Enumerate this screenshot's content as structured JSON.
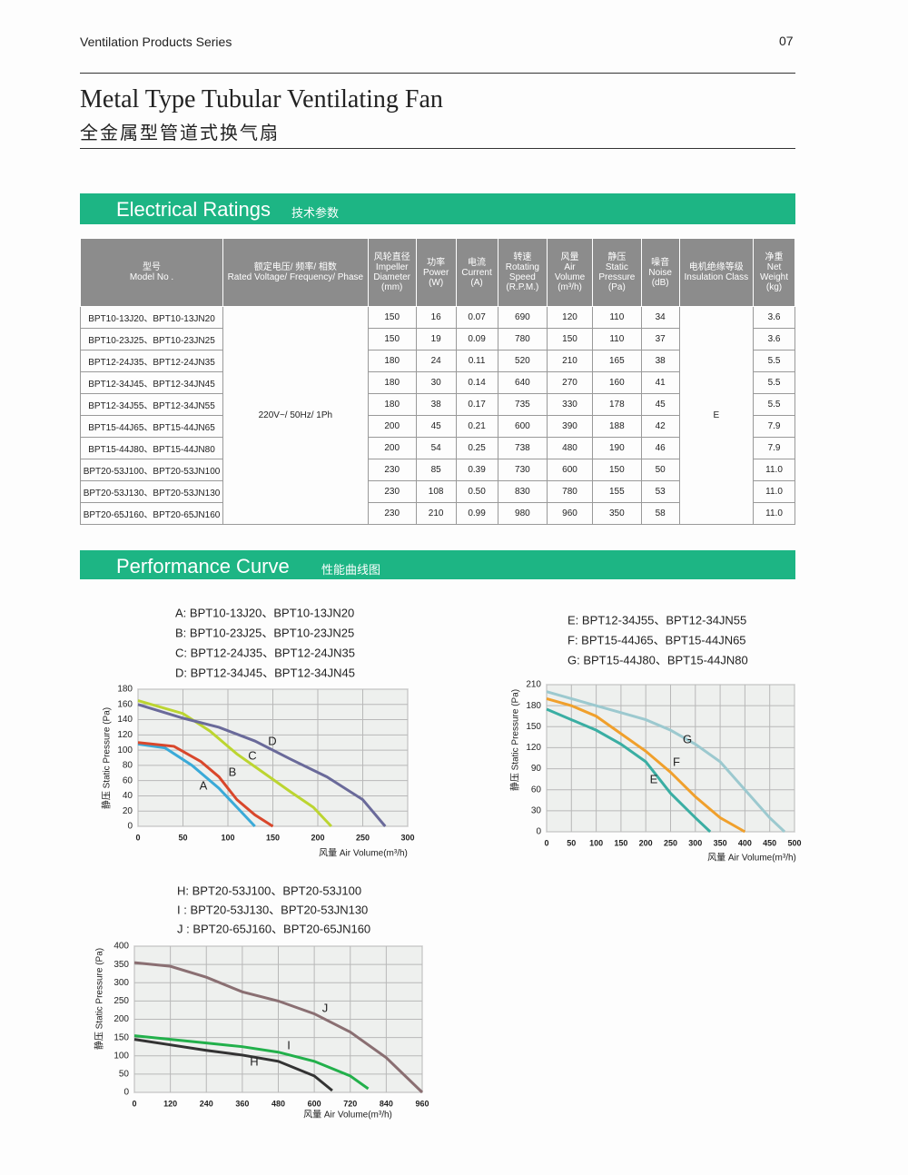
{
  "header": {
    "series": "Ventilation Products Series",
    "page": "07"
  },
  "title": {
    "en": "Metal Type Tubular Ventilating Fan",
    "zh": "全金属型管道式换气扇"
  },
  "sections": {
    "electrical": {
      "en": "Electrical Ratings",
      "zh": "技术参数"
    },
    "performance": {
      "en": "Performance Curve",
      "zh": "性能曲线图"
    }
  },
  "table": {
    "header": [
      [
        "型号",
        "Model No ."
      ],
      [
        "额定电压/ 频率/ 相数",
        "Rated Voltage/ Frequency/ Phase"
      ],
      [
        "风轮直径",
        "Impeller",
        "Diameter",
        "(mm)"
      ],
      [
        "功率",
        "Power",
        "(W)"
      ],
      [
        "电流",
        "Current",
        "(A)"
      ],
      [
        "转速",
        "Rotating",
        "Speed",
        "(R.P.M.)"
      ],
      [
        "风量",
        "Air",
        "Volume",
        "(m³/h)"
      ],
      [
        "静压",
        "Static",
        "Pressure",
        "(Pa)"
      ],
      [
        "噪音",
        "Noise",
        "(dB)"
      ],
      [
        "电机绝缘等级",
        "Insulation Class"
      ],
      [
        "净重",
        "Net",
        "Weight",
        "(kg)"
      ]
    ],
    "rated_voltage": "220V~/ 50Hz/ 1Ph",
    "insulation_class": "E",
    "rows": [
      [
        "BPT10-13J20、BPT10-13JN20",
        "150",
        "16",
        "0.07",
        "690",
        "120",
        "110",
        "34",
        "3.6"
      ],
      [
        "BPT10-23J25、BPT10-23JN25",
        "150",
        "19",
        "0.09",
        "780",
        "150",
        "110",
        "37",
        "3.6"
      ],
      [
        "BPT12-24J35、BPT12-24JN35",
        "180",
        "24",
        "0.11",
        "520",
        "210",
        "165",
        "38",
        "5.5"
      ],
      [
        "BPT12-34J45、BPT12-34JN45",
        "180",
        "30",
        "0.14",
        "640",
        "270",
        "160",
        "41",
        "5.5"
      ],
      [
        "BPT12-34J55、BPT12-34JN55",
        "180",
        "38",
        "0.17",
        "735",
        "330",
        "178",
        "45",
        "5.5"
      ],
      [
        "BPT15-44J65、BPT15-44JN65",
        "200",
        "45",
        "0.21",
        "600",
        "390",
        "188",
        "42",
        "7.9"
      ],
      [
        "BPT15-44J80、BPT15-44JN80",
        "200",
        "54",
        "0.25",
        "738",
        "480",
        "190",
        "46",
        "7.9"
      ],
      [
        "BPT20-53J100、BPT20-53JN100",
        "230",
        "85",
        "0.39",
        "730",
        "600",
        "150",
        "50",
        "11.0"
      ],
      [
        "BPT20-53J130、BPT20-53JN130",
        "230",
        "108",
        "0.50",
        "830",
        "780",
        "155",
        "53",
        "11.0"
      ],
      [
        "BPT20-65J160、BPT20-65JN160",
        "230",
        "210",
        "0.99",
        "980",
        "960",
        "350",
        "58",
        "11.0"
      ]
    ]
  },
  "chart_data": [
    {
      "type": "line",
      "legend": [
        "A: BPT10-13J20、BPT10-13JN20",
        "B: BPT10-23J25、BPT10-23JN25",
        "C: BPT12-24J35、BPT12-24JN35",
        "D: BPT12-34J45、BPT12-34JN45"
      ],
      "ylabel": "静压  Static Pressure (Pa)",
      "xlabel": "风量   Air Volume(m³/h)",
      "xlim": [
        0,
        300
      ],
      "xticks": [
        0,
        50,
        100,
        150,
        200,
        250,
        300
      ],
      "ylim": [
        0,
        180
      ],
      "yticks": [
        0,
        20,
        40,
        60,
        80,
        100,
        120,
        140,
        160,
        180
      ],
      "grid": true,
      "series": [
        {
          "name": "A",
          "color": "#3aaad8",
          "x": [
            0,
            30,
            60,
            90,
            110,
            130
          ],
          "values": [
            108,
            103,
            80,
            50,
            25,
            0
          ]
        },
        {
          "name": "B",
          "color": "#d9472b",
          "x": [
            0,
            40,
            70,
            90,
            110,
            130,
            150
          ],
          "values": [
            110,
            105,
            85,
            65,
            35,
            15,
            0
          ]
        },
        {
          "name": "C",
          "color": "#bcd531",
          "x": [
            0,
            50,
            80,
            110,
            140,
            170,
            195,
            215
          ],
          "values": [
            165,
            148,
            125,
            95,
            70,
            45,
            25,
            0
          ]
        },
        {
          "name": "D",
          "color": "#6a6a9a",
          "x": [
            0,
            50,
            90,
            130,
            170,
            210,
            250,
            275
          ],
          "values": [
            160,
            142,
            130,
            112,
            88,
            65,
            35,
            0
          ]
        }
      ]
    },
    {
      "type": "line",
      "legend": [
        "E: BPT12-34J55、BPT12-34JN55",
        "F: BPT15-44J65、BPT15-44JN65",
        "G: BPT15-44J80、BPT15-44JN80"
      ],
      "ylabel": "静压  Static Pressure (Pa)",
      "xlabel": "风量   Air Volume(m³/h)",
      "xlim": [
        0,
        500
      ],
      "xticks": [
        0,
        50,
        100,
        150,
        200,
        250,
        300,
        350,
        400,
        450,
        500
      ],
      "ylim": [
        0,
        210
      ],
      "yticks": [
        0,
        30,
        60,
        90,
        120,
        150,
        180,
        210
      ],
      "grid": true,
      "series": [
        {
          "name": "E",
          "color": "#3aaea3",
          "x": [
            0,
            50,
            100,
            150,
            200,
            250,
            300,
            330
          ],
          "values": [
            175,
            160,
            145,
            125,
            100,
            55,
            20,
            0
          ]
        },
        {
          "name": "F",
          "color": "#f0a02c",
          "x": [
            0,
            50,
            100,
            150,
            200,
            250,
            300,
            350,
            400
          ],
          "values": [
            190,
            180,
            165,
            140,
            115,
            85,
            50,
            20,
            0
          ]
        },
        {
          "name": "G",
          "color": "#9cc9cf",
          "x": [
            0,
            50,
            100,
            150,
            200,
            250,
            300,
            350,
            400,
            450,
            480
          ],
          "values": [
            200,
            190,
            180,
            170,
            160,
            145,
            125,
            100,
            60,
            20,
            0
          ]
        }
      ]
    },
    {
      "type": "line",
      "legend": [
        "H: BPT20-53J100、BPT20-53J100",
        "I : BPT20-53J130、BPT20-53JN130",
        "J : BPT20-65J160、BPT20-65JN160"
      ],
      "ylabel": "静压  Static Pressure (Pa)",
      "xlabel": "风量   Air Volume(m³/h)",
      "xlim": [
        0,
        960
      ],
      "xticks": [
        0,
        120,
        240,
        360,
        480,
        600,
        720,
        840,
        960
      ],
      "ylim": [
        0,
        400
      ],
      "yticks": [
        0,
        50,
        100,
        150,
        200,
        250,
        300,
        350,
        400
      ],
      "grid": true,
      "series": [
        {
          "name": "H",
          "color": "#333333",
          "x": [
            0,
            120,
            240,
            360,
            480,
            600,
            660
          ],
          "values": [
            145,
            130,
            115,
            102,
            85,
            45,
            5
          ]
        },
        {
          "name": "I",
          "color": "#22b04b",
          "x": [
            0,
            120,
            240,
            360,
            480,
            600,
            720,
            780
          ],
          "values": [
            155,
            145,
            135,
            125,
            110,
            85,
            45,
            10
          ]
        },
        {
          "name": "J",
          "color": "#8a6f72",
          "x": [
            0,
            120,
            240,
            360,
            480,
            600,
            720,
            840,
            960
          ],
          "values": [
            355,
            345,
            315,
            275,
            250,
            215,
            165,
            95,
            0
          ]
        }
      ]
    }
  ]
}
